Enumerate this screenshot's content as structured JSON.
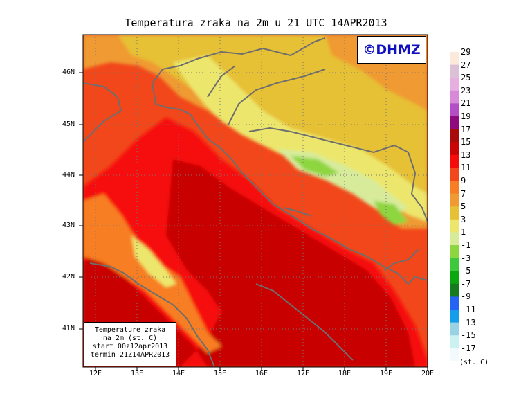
{
  "title": "Temperatura zraka na 2m u 21 UTC 14APR2013",
  "logo": "©DHMZ",
  "info": {
    "line1": "Temperature zraka",
    "line2": "na 2m (st. C)",
    "line3": "start 00z12apr2013",
    "line4": "termin 21Z14APR2013"
  },
  "axes": {
    "lat": [
      "46N",
      "45N",
      "44N",
      "43N",
      "42N",
      "41N"
    ],
    "lon": [
      "12E",
      "13E",
      "14E",
      "15E",
      "16E",
      "17E",
      "18E",
      "19E",
      "20E"
    ]
  },
  "legend": {
    "unit": "(st. C)",
    "labels": [
      "29",
      "27",
      "25",
      "23",
      "21",
      "19",
      "17",
      "15",
      "13",
      "11",
      "9",
      "7",
      "5",
      "3",
      "1",
      "-1",
      "-3",
      "-5",
      "-7",
      "-9",
      "-11",
      "-13",
      "-15",
      "-17"
    ],
    "colors": [
      "#fbeadb",
      "#dcc0d8",
      "#e7aee0",
      "#d88ad8",
      "#b44ec4",
      "#8e0a7e",
      "#a80b0b",
      "#c80404",
      "#f60b0b",
      "#f2471a",
      "#f77e24",
      "#ef9a33",
      "#e6c035",
      "#ece76c",
      "#d7eb9b",
      "#8ed640",
      "#3ec93c",
      "#0ba70e",
      "#167a1f",
      "#2563f2",
      "#149ee9",
      "#98d2e3",
      "#cbf1f0",
      "#f2fafe"
    ]
  }
}
